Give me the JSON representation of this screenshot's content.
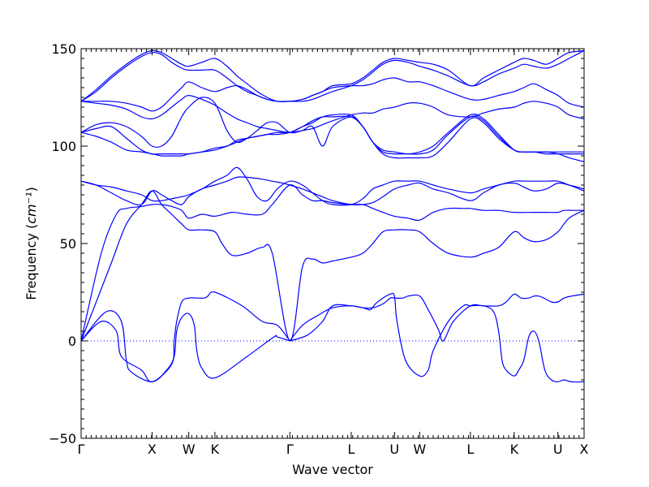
{
  "chart_data": {
    "type": "line",
    "title": "",
    "xlabel": "Wave vector",
    "ylabel": "Frequency",
    "ylabel_unit": "cm⁻¹",
    "ylim": [
      -50,
      150
    ],
    "y_ticks": [
      -50,
      0,
      50,
      100,
      150
    ],
    "x_ticks": [
      {
        "label": "Γ",
        "x": 0.0
      },
      {
        "label": "X",
        "x": 0.141
      },
      {
        "label": "W",
        "x": 0.214
      },
      {
        "label": "K",
        "x": 0.266
      },
      {
        "label": "Γ",
        "x": 0.415
      },
      {
        "label": "L",
        "x": 0.537
      },
      {
        "label": "U",
        "x": 0.623
      },
      {
        "label": "W",
        "x": 0.673
      },
      {
        "label": "L",
        "x": 0.774
      },
      {
        "label": "K",
        "x": 0.861
      },
      {
        "label": "U",
        "x": 0.948
      },
      {
        "label": "X",
        "x": 1.0
      }
    ],
    "xlim": [
      0,
      1
    ],
    "grid": false,
    "line_color": "#0000ff",
    "zero_line_color": "#0000ff",
    "series": [
      {
        "x": [
          0,
          0.05,
          0.08,
          0.09,
          0.1,
          0.141,
          0.17,
          0.185,
          0.19,
          0.2,
          0.214,
          0.225,
          0.23,
          0.24,
          0.266,
          0.33,
          0.383,
          0.39,
          0.415
        ],
        "y": [
          0,
          15,
          10,
          -10,
          -16,
          -21,
          -15,
          -8,
          5,
          12,
          14,
          8,
          -5,
          -14,
          -19,
          -8,
          2,
          2,
          0
        ]
      },
      {
        "x": [
          0,
          0.04,
          0.07,
          0.08,
          0.12,
          0.141,
          0.18,
          0.185,
          0.19,
          0.2,
          0.214,
          0.23,
          0.245,
          0.252,
          0.266,
          0.32,
          0.36,
          0.39,
          0.415
        ],
        "y": [
          0,
          10,
          5,
          -8,
          -15,
          -21,
          -12,
          0,
          10,
          20,
          22,
          22,
          22,
          23,
          25,
          18,
          10,
          8,
          0
        ]
      },
      {
        "x": [
          0.415,
          0.44,
          0.47,
          0.5,
          0.537,
          0.56,
          0.575,
          0.585,
          0.6,
          0.615,
          0.623,
          0.628,
          0.645,
          0.673,
          0.69,
          0.7,
          0.73,
          0.76,
          0.774,
          0.8,
          0.82,
          0.83,
          0.837,
          0.845,
          0.861,
          0.87,
          0.88,
          0.89,
          0.9,
          0.91,
          0.922,
          0.935,
          0.948,
          0.96,
          0.975,
          1.0
        ],
        "y": [
          0,
          8,
          13,
          17,
          18,
          17,
          16,
          19,
          22,
          24,
          23,
          10,
          -10,
          -18,
          -15,
          -5,
          10,
          18,
          18,
          18,
          15,
          5,
          -10,
          -15,
          -18,
          -15,
          -10,
          2,
          5,
          0,
          -15,
          -20,
          -21,
          -20,
          -21,
          -21
        ]
      },
      {
        "x": [
          0.415,
          0.45,
          0.48,
          0.5,
          0.537,
          0.56,
          0.58,
          0.6,
          0.615,
          0.623,
          0.64,
          0.65,
          0.673,
          0.69,
          0.71,
          0.72,
          0.74,
          0.774,
          0.8,
          0.83,
          0.845,
          0.861,
          0.875,
          0.89,
          0.9,
          0.91,
          0.92,
          0.935,
          0.948,
          0.96,
          0.975,
          1.0
        ],
        "y": [
          0,
          3,
          10,
          18,
          18,
          17,
          17,
          19,
          22,
          22,
          22,
          23,
          23,
          16,
          6,
          0,
          10,
          18,
          18,
          18,
          20,
          24,
          22,
          22,
          23,
          23,
          22,
          20,
          20,
          22,
          23,
          24
        ]
      },
      {
        "x": [
          0,
          0.04,
          0.07,
          0.09,
          0.12,
          0.141,
          0.16,
          0.18,
          0.2,
          0.214,
          0.24,
          0.266,
          0.3,
          0.33,
          0.36,
          0.38,
          0.415,
          0.44,
          0.46,
          0.48,
          0.5,
          0.537,
          0.56,
          0.58,
          0.6,
          0.623,
          0.65,
          0.673,
          0.7,
          0.73,
          0.76,
          0.774,
          0.8,
          0.83,
          0.861,
          0.9,
          0.925,
          0.948,
          0.96,
          0.98,
          1.0
        ],
        "y": [
          0,
          45,
          65,
          68,
          69,
          70,
          70,
          69,
          67,
          63,
          65,
          64,
          66,
          65,
          65,
          70,
          80,
          75,
          72,
          72,
          71,
          70,
          70,
          68,
          66,
          64,
          63,
          62,
          66,
          68,
          68,
          68,
          67,
          67,
          66,
          66,
          66,
          66,
          67,
          67,
          67
        ]
      },
      {
        "x": [
          0,
          0.03,
          0.06,
          0.09,
          0.12,
          0.141,
          0.16,
          0.18,
          0.2,
          0.214,
          0.24,
          0.266,
          0.28,
          0.3,
          0.33,
          0.36,
          0.38,
          0.415,
          0.44,
          0.46,
          0.48,
          0.5,
          0.537,
          0.56,
          0.58,
          0.6,
          0.623,
          0.65,
          0.673,
          0.7,
          0.73,
          0.774,
          0.8,
          0.83,
          0.861,
          0.88,
          0.9,
          0.925,
          0.948,
          0.97,
          1.0
        ],
        "y": [
          0,
          20,
          40,
          60,
          70,
          77,
          70,
          65,
          60,
          57,
          57,
          56,
          50,
          44,
          45,
          48,
          45,
          0,
          38,
          42,
          40,
          41,
          43,
          45,
          50,
          56,
          57,
          57,
          56,
          50,
          45,
          43,
          45,
          48,
          56,
          53,
          51,
          52,
          56,
          63,
          67
        ]
      },
      {
        "x": [
          0,
          0.03,
          0.06,
          0.09,
          0.12,
          0.141,
          0.16,
          0.18,
          0.2,
          0.214,
          0.24,
          0.266,
          0.29,
          0.31,
          0.33,
          0.36,
          0.38,
          0.4,
          0.415,
          0.44,
          0.46,
          0.48,
          0.5,
          0.537,
          0.56,
          0.58,
          0.6,
          0.623,
          0.65,
          0.673,
          0.7,
          0.73,
          0.774,
          0.8,
          0.83,
          0.861,
          0.88,
          0.9,
          0.925,
          0.948,
          0.97,
          1.0
        ],
        "y": [
          82,
          80,
          76,
          72,
          70,
          77,
          75,
          72,
          70,
          74,
          78,
          80,
          82,
          84,
          84,
          83,
          82,
          81,
          80,
          78,
          76,
          74,
          72,
          70,
          70,
          71,
          74,
          78,
          80,
          81,
          78,
          76,
          72,
          76,
          80,
          81,
          79,
          77,
          78,
          81,
          80,
          78
        ]
      },
      {
        "x": [
          0,
          0.03,
          0.06,
          0.09,
          0.12,
          0.141,
          0.16,
          0.18,
          0.2,
          0.214,
          0.24,
          0.266,
          0.29,
          0.31,
          0.33,
          0.35,
          0.37,
          0.39,
          0.415,
          0.44,
          0.46,
          0.48,
          0.5,
          0.537,
          0.56,
          0.58,
          0.6,
          0.623,
          0.65,
          0.673,
          0.7,
          0.73,
          0.774,
          0.8,
          0.83,
          0.861,
          0.88,
          0.9,
          0.925,
          0.948,
          0.97,
          1.0
        ],
        "y": [
          82,
          80,
          79,
          77,
          75,
          72,
          72,
          73,
          74,
          75,
          78,
          82,
          85,
          89,
          83,
          74,
          72,
          78,
          82,
          80,
          76,
          72,
          70,
          70,
          73,
          78,
          80,
          82,
          82,
          82,
          80,
          78,
          76,
          78,
          80,
          82,
          82,
          82,
          82,
          82,
          80,
          77
        ]
      },
      {
        "x": [
          0,
          0.03,
          0.06,
          0.09,
          0.12,
          0.141,
          0.16,
          0.18,
          0.2,
          0.214,
          0.24,
          0.266,
          0.29,
          0.31,
          0.33,
          0.35,
          0.37,
          0.39,
          0.415,
          0.44,
          0.46,
          0.48,
          0.5,
          0.537,
          0.56,
          0.58,
          0.6,
          0.623,
          0.65,
          0.673,
          0.7,
          0.73,
          0.774,
          0.8,
          0.83,
          0.861,
          0.88,
          0.9,
          0.925,
          0.948,
          0.97,
          1.0
        ],
        "y": [
          107,
          105,
          102,
          98,
          97,
          96,
          95,
          95,
          95,
          96,
          97,
          99,
          100,
          103,
          104,
          105,
          106,
          106,
          107,
          110,
          112,
          115,
          116,
          116,
          110,
          102,
          96,
          94,
          94,
          94,
          95,
          102,
          114,
          112,
          104,
          98,
          97,
          97,
          96,
          96,
          96,
          96
        ]
      },
      {
        "x": [
          0,
          0.03,
          0.06,
          0.09,
          0.12,
          0.141,
          0.16,
          0.18,
          0.2,
          0.214,
          0.24,
          0.266,
          0.29,
          0.31,
          0.33,
          0.35,
          0.37,
          0.39,
          0.415,
          0.44,
          0.46,
          0.48,
          0.5,
          0.537,
          0.56,
          0.58,
          0.6,
          0.623,
          0.65,
          0.673,
          0.7,
          0.73,
          0.774,
          0.8,
          0.83,
          0.861,
          0.88,
          0.9,
          0.925,
          0.948,
          0.97,
          1.0
        ],
        "y": [
          107,
          109,
          110,
          104,
          98,
          96,
          96,
          96,
          96,
          96,
          97,
          98,
          100,
          102,
          104,
          105,
          106,
          107,
          107,
          110,
          113,
          115,
          115,
          115,
          110,
          102,
          97,
          96,
          96,
          96,
          98,
          106,
          115,
          113,
          105,
          98,
          97,
          97,
          97,
          96,
          94,
          92
        ]
      },
      {
        "x": [
          0,
          0.03,
          0.06,
          0.09,
          0.12,
          0.141,
          0.16,
          0.18,
          0.2,
          0.214,
          0.24,
          0.266,
          0.29,
          0.31,
          0.33,
          0.35,
          0.37,
          0.39,
          0.415,
          0.44,
          0.46,
          0.48,
          0.5,
          0.537,
          0.56,
          0.58,
          0.6,
          0.623,
          0.65,
          0.673,
          0.7,
          0.73,
          0.774,
          0.8,
          0.83,
          0.861,
          0.88,
          0.9,
          0.925,
          0.948,
          0.97,
          1.0
        ],
        "y": [
          107,
          111,
          112,
          110,
          105,
          100,
          100,
          105,
          115,
          120,
          125,
          122,
          108,
          102,
          104,
          108,
          112,
          112,
          107,
          108,
          110,
          100,
          110,
          115,
          110,
          102,
          98,
          97,
          96,
          97,
          100,
          107,
          116,
          114,
          106,
          98,
          97,
          97,
          97,
          97,
          97,
          97
        ]
      },
      {
        "x": [
          0,
          0.03,
          0.06,
          0.09,
          0.12,
          0.141,
          0.16,
          0.18,
          0.2,
          0.214,
          0.24,
          0.266,
          0.29,
          0.31,
          0.33,
          0.35,
          0.37,
          0.39,
          0.415,
          0.44,
          0.46,
          0.48,
          0.5,
          0.537,
          0.56,
          0.58,
          0.6,
          0.623,
          0.65,
          0.673,
          0.7,
          0.73,
          0.774,
          0.8,
          0.83,
          0.861,
          0.88,
          0.9,
          0.925,
          0.948,
          0.97,
          1.0
        ],
        "y": [
          123,
          122,
          121,
          119,
          115,
          114,
          116,
          120,
          124,
          126,
          124,
          121,
          117,
          114,
          112,
          110,
          109,
          108,
          107,
          108,
          109,
          111,
          113,
          116,
          117,
          117,
          119,
          120,
          122,
          122,
          120,
          116,
          115,
          117,
          119,
          120,
          122,
          123,
          122,
          120,
          116,
          114
        ]
      },
      {
        "x": [
          0,
          0.03,
          0.06,
          0.09,
          0.12,
          0.141,
          0.16,
          0.18,
          0.2,
          0.214,
          0.24,
          0.266,
          0.29,
          0.31,
          0.33,
          0.35,
          0.37,
          0.39,
          0.415,
          0.44,
          0.46,
          0.48,
          0.5,
          0.537,
          0.56,
          0.58,
          0.6,
          0.623,
          0.65,
          0.673,
          0.7,
          0.73,
          0.774,
          0.8,
          0.83,
          0.861,
          0.88,
          0.9,
          0.925,
          0.948,
          0.97,
          1.0
        ],
        "y": [
          123,
          123,
          123,
          122,
          120,
          118,
          120,
          125,
          130,
          133,
          130,
          128,
          130,
          131,
          129,
          126,
          124,
          123,
          123,
          124,
          126,
          128,
          130,
          131,
          131,
          132,
          134,
          135,
          133,
          133,
          131,
          128,
          124,
          124,
          126,
          128,
          130,
          132,
          129,
          126,
          122,
          120
        ]
      },
      {
        "x": [
          0,
          0.03,
          0.06,
          0.09,
          0.12,
          0.141,
          0.16,
          0.18,
          0.2,
          0.214,
          0.24,
          0.266,
          0.29,
          0.31,
          0.33,
          0.35,
          0.37,
          0.39,
          0.415,
          0.44,
          0.46,
          0.48,
          0.5,
          0.537,
          0.56,
          0.58,
          0.6,
          0.623,
          0.65,
          0.673,
          0.7,
          0.73,
          0.774,
          0.8,
          0.83,
          0.861,
          0.88,
          0.9,
          0.925,
          0.948,
          0.97,
          1.0
        ],
        "y": [
          123,
          128,
          135,
          141,
          146,
          148,
          147,
          143,
          140,
          139,
          139,
          139,
          135,
          131,
          128,
          126,
          124,
          123,
          123,
          123,
          124,
          126,
          128,
          131,
          134,
          138,
          142,
          144,
          143,
          141,
          139,
          136,
          131,
          133,
          137,
          140,
          142,
          141,
          140,
          142,
          145,
          149
        ]
      },
      {
        "x": [
          0,
          0.03,
          0.06,
          0.09,
          0.12,
          0.141,
          0.16,
          0.18,
          0.2,
          0.214,
          0.24,
          0.266,
          0.29,
          0.31,
          0.33,
          0.35,
          0.37,
          0.39,
          0.415,
          0.44,
          0.46,
          0.48,
          0.5,
          0.537,
          0.56,
          0.58,
          0.6,
          0.623,
          0.65,
          0.673,
          0.7,
          0.73,
          0.774,
          0.8,
          0.83,
          0.861,
          0.88,
          0.9,
          0.925,
          0.948,
          0.97,
          1.0
        ],
        "y": [
          123,
          129,
          136,
          142,
          147,
          149,
          148,
          145,
          142,
          141,
          143,
          145,
          141,
          136,
          132,
          128,
          125,
          123,
          123,
          124,
          126,
          128,
          131,
          132,
          135,
          139,
          143,
          145,
          144,
          143,
          142,
          139,
          131,
          135,
          139,
          143,
          145,
          144,
          142,
          145,
          148,
          149
        ]
      }
    ]
  }
}
